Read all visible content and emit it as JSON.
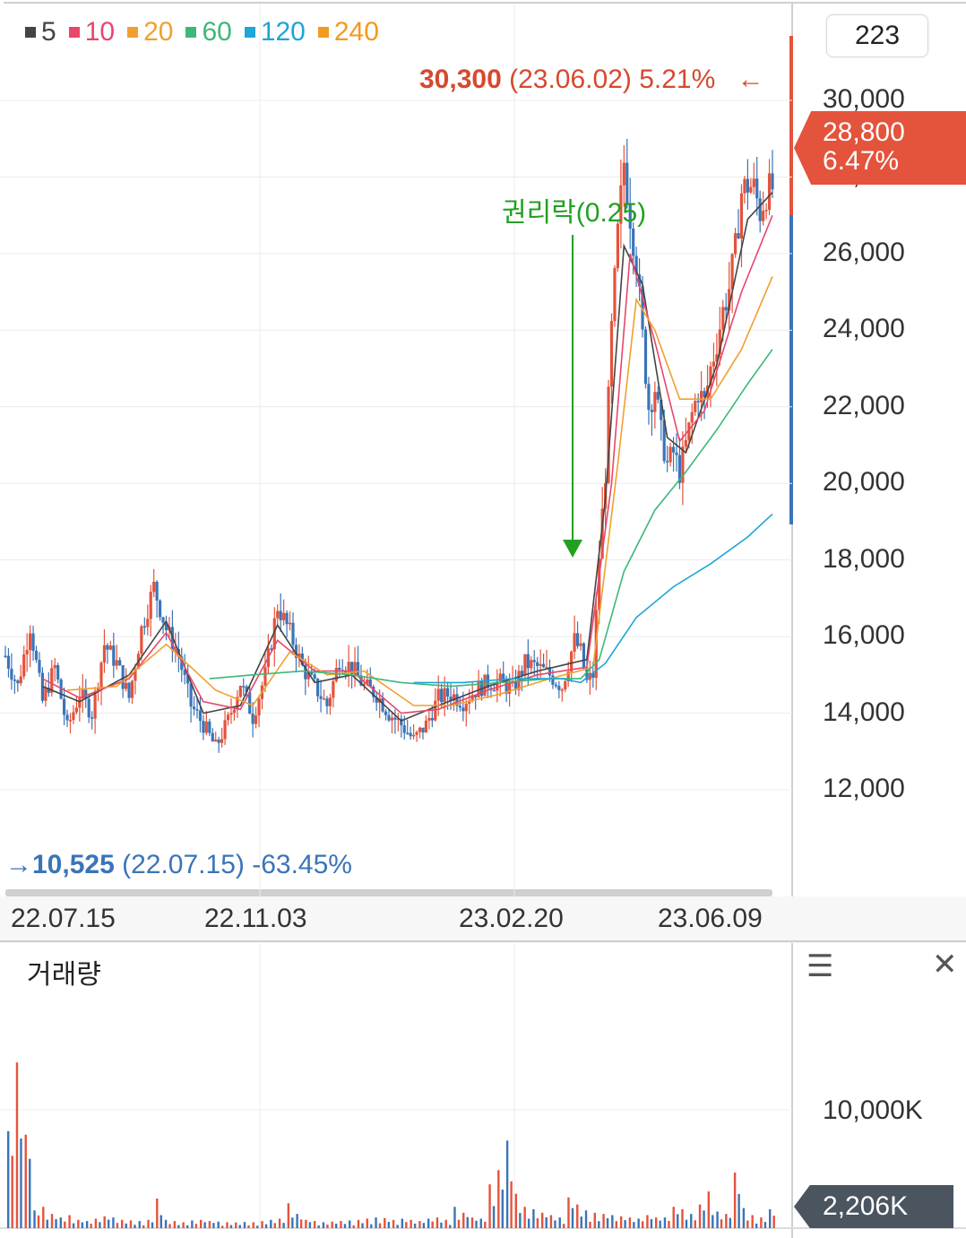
{
  "legend": [
    {
      "label": "5",
      "color": "#444444"
    },
    {
      "label": "10",
      "color": "#e8466b"
    },
    {
      "label": "20",
      "color": "#f0a030"
    },
    {
      "label": "60",
      "color": "#3cb878"
    },
    {
      "label": "120",
      "color": "#1fa5d6"
    },
    {
      "label": "240",
      "color": "#f39a1e"
    }
  ],
  "period_value": "223",
  "current": {
    "price": "28,800",
    "change": "6.47%"
  },
  "high_annotation": {
    "price": "30,300",
    "date": "(23.06.02)",
    "pct": "5.21%",
    "arrow": "←"
  },
  "low_annotation": {
    "arrow": "→",
    "price": "10,525",
    "date": "(22.07.15)",
    "pct": "-63.45%"
  },
  "event_label": "권리락(0.25)",
  "volume": {
    "title": "거래량",
    "axis_label": "10,000K",
    "current": "2,206K"
  },
  "icons": {
    "menu": "menu-icon",
    "close": "close-icon"
  },
  "chart_data": {
    "type": "candlestick",
    "y_labels": [
      "30,000",
      "28,000",
      "26,000",
      "24,000",
      "22,000",
      "20,000",
      "18,000",
      "16,000",
      "14,000",
      "12,000"
    ],
    "y_values": [
      30000,
      28000,
      26000,
      24000,
      22000,
      20000,
      18000,
      16000,
      14000,
      12000
    ],
    "ylim": [
      10525,
      30300
    ],
    "x_labels": [
      "22.07.15",
      "22.11.03",
      "23.02.20",
      "23.06.09"
    ],
    "colors": {
      "up": "#e4533b",
      "down": "#3a74b8"
    },
    "close_path": [
      [
        0,
        15500
      ],
      [
        8,
        14700
      ],
      [
        16,
        16300
      ],
      [
        24,
        14300
      ],
      [
        32,
        15200
      ],
      [
        40,
        13600
      ],
      [
        48,
        14500
      ],
      [
        56,
        14000
      ],
      [
        64,
        15800
      ],
      [
        72,
        15300
      ],
      [
        80,
        14400
      ],
      [
        88,
        16200
      ],
      [
        96,
        17300
      ],
      [
        104,
        16200
      ],
      [
        112,
        15500
      ],
      [
        120,
        14200
      ],
      [
        128,
        13700
      ],
      [
        136,
        13100
      ],
      [
        144,
        13800
      ],
      [
        152,
        14800
      ],
      [
        160,
        13900
      ],
      [
        168,
        15000
      ],
      [
        176,
        16800
      ],
      [
        184,
        16100
      ],
      [
        192,
        15200
      ],
      [
        200,
        14700
      ],
      [
        208,
        14200
      ],
      [
        216,
        15400
      ],
      [
        224,
        15200
      ],
      [
        232,
        14700
      ],
      [
        240,
        14500
      ],
      [
        248,
        14000
      ],
      [
        256,
        13700
      ],
      [
        264,
        13300
      ],
      [
        272,
        13700
      ],
      [
        280,
        14400
      ],
      [
        288,
        14500
      ],
      [
        296,
        14300
      ],
      [
        304,
        14600
      ],
      [
        312,
        14800
      ],
      [
        320,
        14800
      ],
      [
        328,
        14600
      ],
      [
        336,
        15300
      ],
      [
        344,
        15200
      ],
      [
        352,
        15000
      ],
      [
        360,
        14700
      ],
      [
        368,
        15900
      ],
      [
        372,
        15600
      ],
      [
        376,
        14800
      ],
      [
        380,
        15000
      ],
      [
        384,
        18100
      ],
      [
        388,
        20300
      ],
      [
        392,
        24000
      ],
      [
        396,
        26500
      ],
      [
        400,
        28400
      ],
      [
        404,
        27000
      ],
      [
        408,
        25800
      ],
      [
        412,
        23800
      ],
      [
        416,
        22000
      ],
      [
        420,
        22500
      ],
      [
        424,
        21300
      ],
      [
        428,
        20500
      ],
      [
        432,
        20800
      ],
      [
        436,
        20300
      ],
      [
        440,
        21000
      ],
      [
        444,
        21800
      ],
      [
        448,
        22400
      ],
      [
        452,
        22100
      ],
      [
        456,
        23000
      ],
      [
        460,
        23700
      ],
      [
        464,
        24500
      ],
      [
        468,
        25100
      ],
      [
        472,
        26100
      ],
      [
        476,
        27600
      ],
      [
        480,
        27800
      ],
      [
        484,
        27700
      ],
      [
        488,
        27100
      ],
      [
        492,
        27600
      ],
      [
        496,
        27700
      ]
    ],
    "ma_lines": [
      {
        "name": "5",
        "color": "#444444",
        "points": [
          [
            24,
            14700
          ],
          [
            48,
            14300
          ],
          [
            80,
            15000
          ],
          [
            104,
            16400
          ],
          [
            128,
            14000
          ],
          [
            152,
            14200
          ],
          [
            176,
            16300
          ],
          [
            200,
            14800
          ],
          [
            224,
            15000
          ],
          [
            256,
            13800
          ],
          [
            280,
            14200
          ],
          [
            312,
            14700
          ],
          [
            344,
            15100
          ],
          [
            376,
            15400
          ],
          [
            388,
            19600
          ],
          [
            400,
            26200
          ],
          [
            412,
            25200
          ],
          [
            428,
            21200
          ],
          [
            440,
            20800
          ],
          [
            460,
            23100
          ],
          [
            480,
            26900
          ],
          [
            496,
            27600
          ]
        ]
      },
      {
        "name": "10",
        "color": "#e8466b",
        "points": [
          [
            24,
            14900
          ],
          [
            48,
            14400
          ],
          [
            80,
            14900
          ],
          [
            104,
            16100
          ],
          [
            128,
            14300
          ],
          [
            152,
            14100
          ],
          [
            176,
            15900
          ],
          [
            200,
            15100
          ],
          [
            224,
            15100
          ],
          [
            256,
            14000
          ],
          [
            280,
            14100
          ],
          [
            312,
            14600
          ],
          [
            344,
            15000
          ],
          [
            376,
            15200
          ],
          [
            392,
            20000
          ],
          [
            404,
            26000
          ],
          [
            420,
            23700
          ],
          [
            436,
            21100
          ],
          [
            452,
            21900
          ],
          [
            476,
            25000
          ],
          [
            496,
            27000
          ]
        ]
      },
      {
        "name": "20",
        "color": "#f0a030",
        "points": [
          [
            40,
            14600
          ],
          [
            72,
            14700
          ],
          [
            104,
            15800
          ],
          [
            136,
            14600
          ],
          [
            160,
            14200
          ],
          [
            184,
            15600
          ],
          [
            208,
            15000
          ],
          [
            232,
            15100
          ],
          [
            264,
            14200
          ],
          [
            288,
            14200
          ],
          [
            320,
            14500
          ],
          [
            352,
            14900
          ],
          [
            380,
            15200
          ],
          [
            396,
            20500
          ],
          [
            408,
            24800
          ],
          [
            420,
            24000
          ],
          [
            436,
            22200
          ],
          [
            456,
            22200
          ],
          [
            476,
            23500
          ],
          [
            496,
            25400
          ]
        ]
      },
      {
        "name": "60",
        "color": "#3cb878",
        "points": [
          [
            132,
            14900
          ],
          [
            160,
            15000
          ],
          [
            192,
            15100
          ],
          [
            224,
            15000
          ],
          [
            256,
            14800
          ],
          [
            288,
            14700
          ],
          [
            320,
            14800
          ],
          [
            352,
            14900
          ],
          [
            372,
            14900
          ],
          [
            384,
            15400
          ],
          [
            400,
            17700
          ],
          [
            420,
            19300
          ],
          [
            440,
            20300
          ],
          [
            460,
            21400
          ],
          [
            480,
            22600
          ],
          [
            496,
            23500
          ]
        ]
      },
      {
        "name": "120",
        "color": "#1fa5d6",
        "points": [
          [
            264,
            14800
          ],
          [
            296,
            14800
          ],
          [
            328,
            14900
          ],
          [
            360,
            14900
          ],
          [
            372,
            14800
          ],
          [
            388,
            15300
          ],
          [
            408,
            16500
          ],
          [
            432,
            17300
          ],
          [
            456,
            17900
          ],
          [
            480,
            18600
          ],
          [
            496,
            19200
          ]
        ]
      }
    ],
    "volume_values": [
      8200,
      14000,
      7900,
      1500,
      1800,
      1200,
      900,
      1100,
      700,
      600,
      800,
      1000,
      900,
      700,
      650,
      600,
      700,
      2500,
      700,
      600,
      500,
      650,
      700,
      600,
      550,
      500,
      480,
      520,
      500,
      600,
      700,
      800,
      2100,
      1200,
      700,
      600,
      500,
      550,
      600,
      650,
      700,
      800,
      900,
      850,
      700,
      800,
      700,
      600,
      800,
      900,
      700,
      1800,
      1300,
      900,
      800,
      3700,
      4900,
      7400,
      2900,
      1800,
      1600,
      1300,
      1100,
      900,
      2600,
      2000,
      1500,
      1300,
      1200,
      1100,
      1000,
      900,
      800,
      1100,
      900,
      900,
      1800,
      1600,
      1200,
      2000,
      3100,
      1400,
      1200,
      4700,
      1700,
      1100,
      900,
      1600
    ]
  }
}
